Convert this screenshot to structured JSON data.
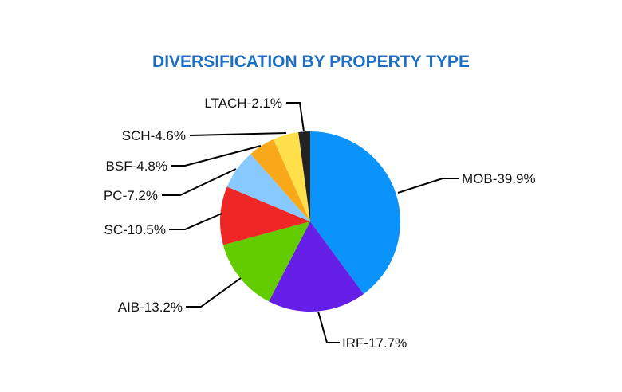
{
  "chart_data": {
    "type": "pie",
    "title": "DIVERSIFICATION BY PROPERTY TYPE",
    "start": "12 o'clock, clockwise",
    "slices": [
      {
        "name": "MOB",
        "value": 39.9,
        "label": "MOB-39.9%",
        "color": "#0a93fb"
      },
      {
        "name": "IRF",
        "value": 17.7,
        "label": "IRF-17.7%",
        "color": "#661fe6"
      },
      {
        "name": "AIB",
        "value": 13.2,
        "label": "AIB-13.2%",
        "color": "#62cc00"
      },
      {
        "name": "SC",
        "value": 10.5,
        "label": "SC-10.5%",
        "color": "#ee2626"
      },
      {
        "name": "PC",
        "value": 7.2,
        "label": "PC-7.2%",
        "color": "#88c9ff"
      },
      {
        "name": "BSF",
        "value": 4.8,
        "label": "BSF-4.8%",
        "color": "#f9a819"
      },
      {
        "name": "SCH",
        "value": 4.6,
        "label": "SCH-4.6%",
        "color": "#ffe04a"
      },
      {
        "name": "LTACH",
        "value": 2.1,
        "label": "LTACH-2.1%",
        "color": "#232323"
      }
    ]
  }
}
